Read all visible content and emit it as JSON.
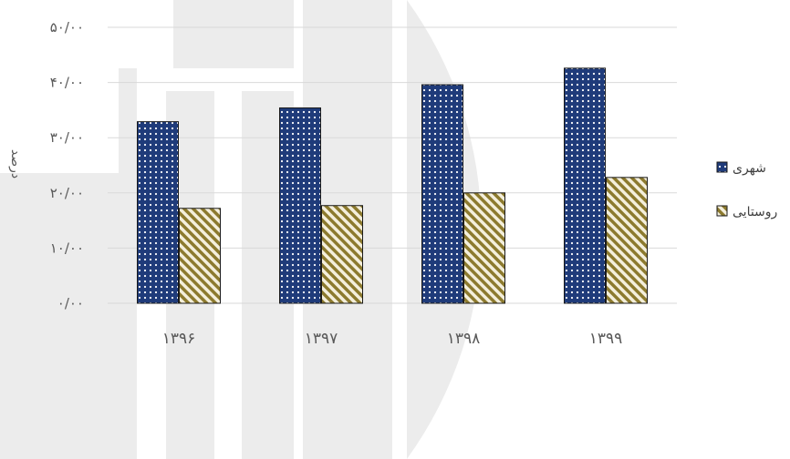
{
  "chart_data": {
    "type": "bar",
    "categories": [
      "۱۳۹۶",
      "۱۳۹۷",
      "۱۳۹۸",
      "۱۳۹۹"
    ],
    "series": [
      {
        "name": "شهری",
        "values": [
          32.9,
          35.4,
          39.6,
          42.6
        ],
        "color": "#1f3b7a",
        "pattern": "dots"
      },
      {
        "name": "روستایی",
        "values": [
          17.2,
          17.7,
          20.0,
          22.8
        ],
        "color": "#8c7a2e",
        "pattern": "diagonal-stripes"
      }
    ],
    "ylabel": "درصد",
    "xlabel": "",
    "title": "",
    "ylim": [
      0,
      50
    ],
    "yticks": [
      0,
      10,
      20,
      30,
      40,
      50
    ],
    "ytick_labels": [
      "۰/۰۰",
      "۱۰/۰۰",
      "۲۰/۰۰",
      "۳۰/۰۰",
      "۴۰/۰۰",
      "۵۰/۰۰"
    ],
    "grid": true,
    "legend_position": "right"
  }
}
